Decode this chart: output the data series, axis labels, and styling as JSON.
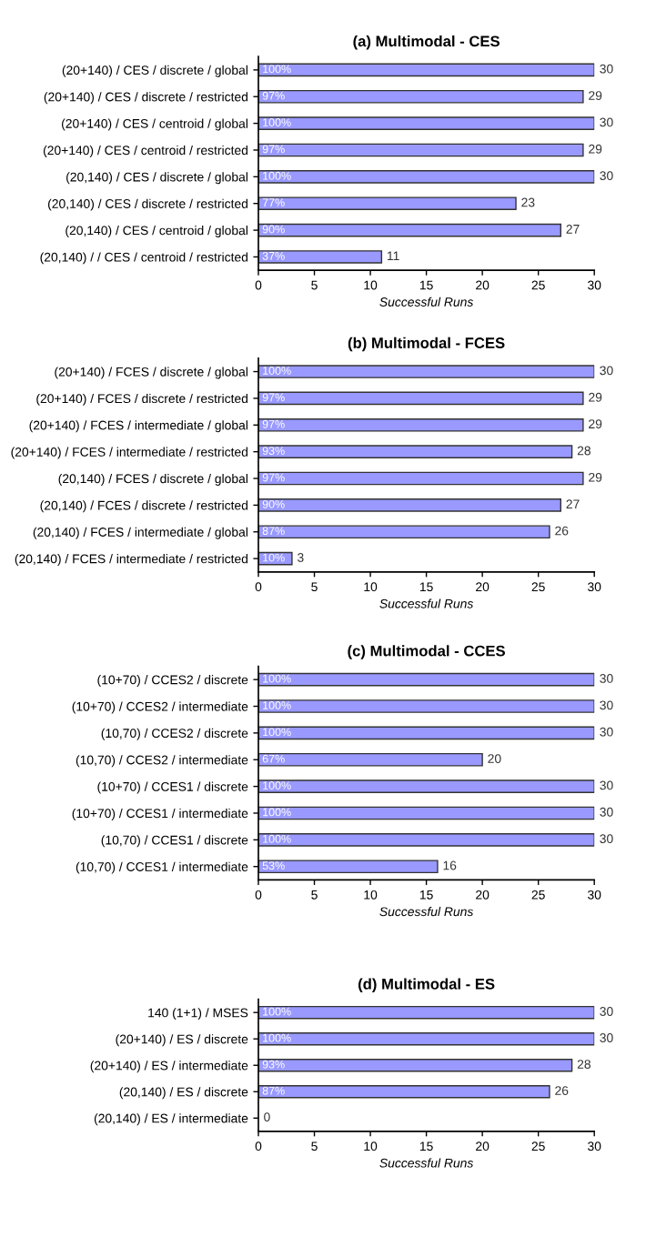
{
  "chart_data": [
    {
      "type": "bar",
      "orientation": "horizontal",
      "title": "(a) Multimodal - CES",
      "xlabel": "Successful Runs",
      "categories": [
        "(20+140) / CES / discrete / global",
        "(20+140) / CES / discrete / restricted",
        "(20+140) / CES / centroid / global",
        "(20+140) / CES / centroid / restricted",
        "(20,140) / CES / discrete / global",
        "(20,140) / CES / discrete / restricted",
        "(20,140) / CES / centroid / global",
        "(20,140) / / CES / centroid / restricted"
      ],
      "values": [
        30,
        29,
        30,
        29,
        30,
        23,
        27,
        11
      ],
      "color": "#9999ff",
      "data_labels": true,
      "annotations": [
        {
          "text": "100%",
          "y": "(20+140) / CES / discrete / global"
        },
        {
          "text": "97%",
          "y": "(20+140) / CES / discrete / restricted"
        },
        {
          "text": "100%",
          "y": "(20+140) / CES / centroid / global"
        },
        {
          "text": "97%",
          "y": "(20+140) / CES / centroid / restricted"
        },
        {
          "text": "100%",
          "y": "(20,140) / CES / discrete / global"
        },
        {
          "text": "77%",
          "y": "(20,140) / CES / discrete / restricted"
        },
        {
          "text": "90%",
          "y": "(20,140) / CES / centroid / global"
        },
        {
          "text": "37%",
          "y": "(20,140) / / CES / centroid / restricted"
        }
      ],
      "xlim": [
        0,
        30
      ],
      "xticks": [
        0,
        5,
        10,
        15,
        20,
        25,
        30
      ],
      "grid": false,
      "legend": false
    },
    {
      "type": "bar",
      "orientation": "horizontal",
      "title": "(b) Multimodal - FCES",
      "xlabel": "Successful Runs",
      "categories": [
        "(20+140) / FCES / discrete / global",
        "(20+140) / FCES / discrete / restricted",
        "(20+140) / FCES / intermediate / global",
        "(20+140) / FCES / intermediate / restricted",
        "(20,140) / FCES / discrete / global",
        "(20,140) / FCES / discrete / restricted",
        "(20,140) / FCES / intermediate / global",
        "(20,140) / FCES / intermediate / restricted"
      ],
      "values": [
        30,
        29,
        29,
        28,
        29,
        27,
        26,
        3
      ],
      "color": "#9999ff",
      "data_labels": true,
      "annotations": [
        {
          "text": "100%",
          "y": "(20+140) / FCES / discrete / global"
        },
        {
          "text": "97%",
          "y": "(20+140) / FCES / discrete / restricted"
        },
        {
          "text": "97%",
          "y": "(20+140) / FCES / intermediate / global"
        },
        {
          "text": "93%",
          "y": "(20+140) / FCES / intermediate / restricted"
        },
        {
          "text": "97%",
          "y": "(20,140) / FCES / discrete / global"
        },
        {
          "text": "90%",
          "y": "(20,140) / FCES / discrete / restricted"
        },
        {
          "text": "87%",
          "y": "(20,140) / FCES / intermediate / global"
        },
        {
          "text": "10%",
          "y": "(20,140) / FCES / intermediate / restricted"
        }
      ],
      "xlim": [
        0,
        30
      ],
      "xticks": [
        0,
        5,
        10,
        15,
        20,
        25,
        30
      ],
      "grid": false,
      "legend": false
    },
    {
      "type": "bar",
      "orientation": "horizontal",
      "title": "(c) Multimodal - CCES",
      "xlabel": "Successful Runs",
      "categories": [
        "(10+70) / CCES2 / discrete",
        "(10+70) / CCES2 / intermediate",
        "(10,70) / CCES2 / discrete",
        "(10,70) / CCES2 / intermediate",
        "(10+70) / CCES1 / discrete",
        "(10+70) / CCES1 / intermediate",
        "(10,70) / CCES1 / discrete",
        "(10,70) / CCES1 / intermediate"
      ],
      "values": [
        30,
        30,
        30,
        20,
        30,
        30,
        30,
        16
      ],
      "color": "#9999ff",
      "data_labels": true,
      "annotations": [
        {
          "text": "100%",
          "y": "(10+70) / CCES2 / discrete"
        },
        {
          "text": "100%",
          "y": "(10+70) / CCES2 / intermediate"
        },
        {
          "text": "100%",
          "y": "(10,70) / CCES2 / discrete"
        },
        {
          "text": "67%",
          "y": "(10,70) / CCES2 / intermediate"
        },
        {
          "text": "100%",
          "y": "(10+70) / CCES1 / discrete"
        },
        {
          "text": "100%",
          "y": "(10+70) / CCES1 / intermediate"
        },
        {
          "text": "100%",
          "y": "(10,70) / CCES1 / discrete"
        },
        {
          "text": "53%",
          "y": "(10,70) / CCES1 / intermediate"
        }
      ],
      "xlim": [
        0,
        30
      ],
      "xticks": [
        0,
        5,
        10,
        15,
        20,
        25,
        30
      ],
      "grid": false,
      "legend": false
    },
    {
      "type": "bar",
      "orientation": "horizontal",
      "title": "(d) Multimodal - ES",
      "xlabel": "Successful Runs",
      "categories": [
        "140 (1+1) / MSES",
        "(20+140) / ES / discrete",
        "(20+140) / ES / intermediate",
        "(20,140) / ES / discrete",
        "(20,140) / ES / intermediate"
      ],
      "values": [
        30,
        30,
        28,
        26,
        0
      ],
      "color": "#9999ff",
      "data_labels": true,
      "annotations": [
        {
          "text": "100%",
          "y": "140 (1+1) / MSES"
        },
        {
          "text": "100%",
          "y": "(20+140) / ES / discrete"
        },
        {
          "text": "93%",
          "y": "(20+140) / ES / intermediate"
        },
        {
          "text": "87%",
          "y": "(20,140) / ES / discrete"
        }
      ],
      "xlim": [
        0,
        30
      ],
      "xticks": [
        0,
        5,
        10,
        15,
        20,
        25,
        30
      ],
      "grid": false,
      "legend": false
    }
  ]
}
